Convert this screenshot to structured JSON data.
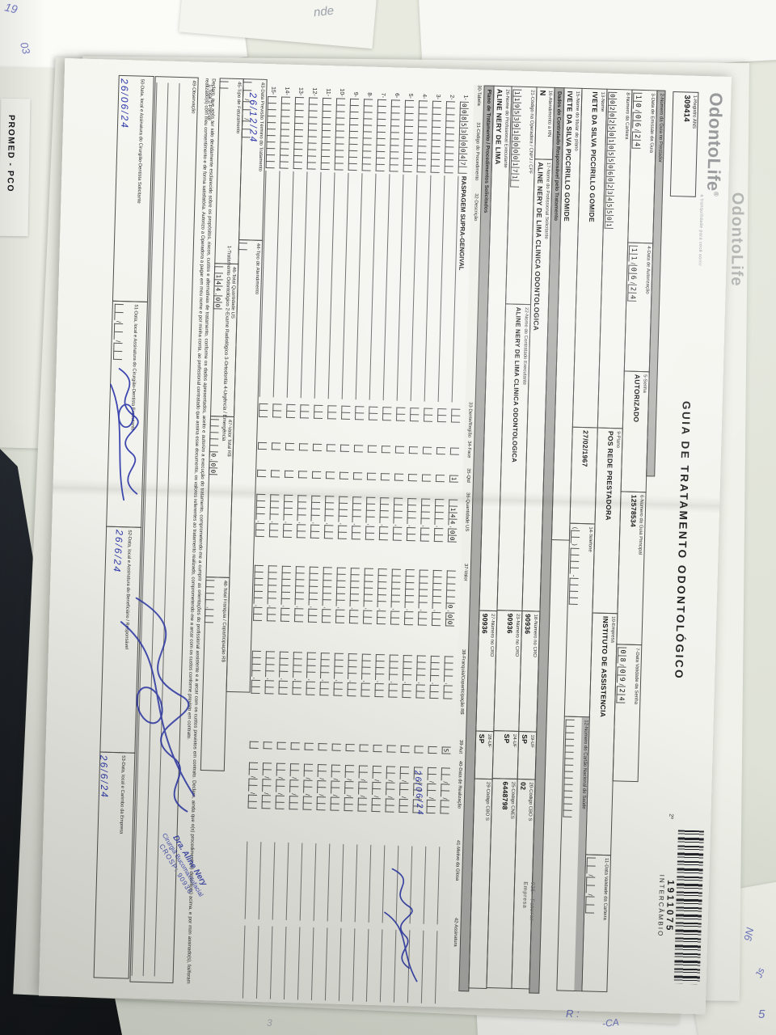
{
  "background": {
    "promed": "PROMED - PCO",
    "scribbles": {
      "s1": "nde",
      "s2": "19",
      "s3": "03",
      "s4": "R :",
      "s5": "-CA",
      "s6": "9N",
      "s7": "Js",
      "s8": "5",
      "s9": "3"
    }
  },
  "form": {
    "logo": {
      "name": "OdontoLife",
      "registered": "®",
      "tagline": "a tranquilidade para você sorrir"
    },
    "title": "GUIA DE TRATAMENTO ODONTOLÓGICO",
    "via_label": "2ª",
    "barcode_number": "1911075",
    "barcode_label": "INTERCÂMBIO",
    "sections": {
      "contratado": "Dados do Contratado Responsável pelo Tratamento",
      "plano": "Plano de Tratamento / Procedimentos Solicitados"
    },
    "faturar_stamp": "025 - Faturar Empresa",
    "fields": {
      "f1": {
        "label": "1-Registro ANS",
        "value": "309414"
      },
      "f2": {
        "label": "2-Número da Guia no Prestador",
        "value": ""
      },
      "f3": {
        "label": "3-Data de Emissão da Guia",
        "value": "10/06/24"
      },
      "f4": {
        "label": "4-Data de Autorização",
        "value": "11/06/24"
      },
      "f5": {
        "label": "5-Senha",
        "value": "AUTORIZADO"
      },
      "f6": {
        "label": "6-Número da Guia Principal",
        "value": "12578534"
      },
      "f7": {
        "label": "7-Data Validade da Senha",
        "value": "08/09/24"
      },
      "f8": {
        "label": "8-Número da Carteira",
        "value": "002025010550602345501"
      },
      "f9": {
        "label": "9-Plano",
        "value": "POS REDE PRESTADORA"
      },
      "f10": {
        "label": "10-Empresa",
        "value": "INSTITUTO DE ASSISTENCIA"
      },
      "f11": {
        "label": "11-Data Validade da Carteira",
        "value": ""
      },
      "f12": {
        "label": "12-Número do Cartão Nacional de Saúde",
        "value": ""
      },
      "f13": {
        "label": "13-Nome",
        "value": "IVETE DA SILVA PICCIRILLO GOMIDE"
      },
      "f13b": {
        "label": "",
        "value": "27/02/1967"
      },
      "f14": {
        "label": "14-Telefone",
        "value": ""
      },
      "f15": {
        "label": "15-Nome do titular do plano",
        "value": "IVETE DA SILVA PICCIRILLO GOMIDE"
      },
      "f16": {
        "label": "16-Atendimento a RN",
        "value": "N"
      },
      "f17": {
        "label": "17-Nome do Profissional Solicitante",
        "value": "ALINE NERY DE LIMA CLINICA ODONTOLOGICA"
      },
      "f18": {
        "label": "18-Número no CRO",
        "value": "90936"
      },
      "f19": {
        "label": "19-UF",
        "value": "SP"
      },
      "f20": {
        "label": "20-Código CBO S",
        "value": "02"
      },
      "f21": {
        "label": "21-Código na Operadora / CNPJ / CPF",
        "value": "11953918000171"
      },
      "f22": {
        "label": "22-Nome do Contratado Executante",
        "value": "ALINE NERY DE LIMA CLINICA ODONTOLOGICA"
      },
      "f23": {
        "label": "23-Número no CRO",
        "value": "90936"
      },
      "f24": {
        "label": "24-UF",
        "value": "SP"
      },
      "f25": {
        "label": "25-Código CNES",
        "value": "6448798"
      },
      "f26": {
        "label": "26-Nome do Profissional Executante",
        "value": "ALINE NERY DE LIMA"
      },
      "f27": {
        "label": "27-Número no CRO",
        "value": "90936"
      },
      "f28": {
        "label": "28-UF",
        "value": "SP"
      },
      "f29": {
        "label": "29-Código CBO S",
        "value": ""
      },
      "f43": {
        "label": "43-Data Previsão Término do Tratamento",
        "value": ""
      },
      "f44": {
        "label": "44-Tipo de Atendimento",
        "options": "1-Tratamento Odontológico   2-Exame Radiológico   3-Ortodontia   4-Urgência / Emergência",
        "value": ""
      },
      "f45": {
        "label": "45-Tipo de Faturamento",
        "options": "1-Total   2-Parcial",
        "value": ""
      },
      "f46": {
        "label": "46-Total Quantidade US",
        "value": "144,00"
      },
      "f47": {
        "label": "47-Valor Total R$",
        "value": "0,00"
      },
      "f48": {
        "label": "48-Total Franquia / Coparticipação R$",
        "value": ""
      },
      "f49": {
        "label": "49-Observação",
        "value": ""
      },
      "f50": {
        "label": "50-Data, local e Assinatura do Cirurgião-Dentista Solicitante",
        "value": ""
      },
      "f51": {
        "label": "51-Data, local e Assinatura do Cirurgião-Dentista Executante",
        "value": ""
      },
      "f52": {
        "label": "52-Data, local e Assinatura do Beneficiário / Responsável",
        "value": ""
      },
      "f53": {
        "label": "53-Data, local e Carimbo da Empresa",
        "value": ""
      }
    },
    "table": {
      "headers": [
        "30-Tabela",
        "31-Código do Procedimento",
        "32-Descrição",
        "33-Dente/Região",
        "34-Face",
        "35-Qtd",
        "36-Quantidade US",
        "37-Valor",
        "38-Franquia/Coparticipação R$",
        "39-Aut",
        "40-Data de Realização",
        "41-Motivo da Glosa",
        "42-Assinatura"
      ],
      "row_count": 15,
      "rows": [
        {
          "num": "1-",
          "code": "0085300047",
          "desc": "RASPAGEM SUPRA-GENGIVAL",
          "dente": "",
          "face": "",
          "qtd": "1",
          "qtd_us": "144,00",
          "valor": "0,00",
          "franquia": "",
          "aut": "S",
          "data": ""
        }
      ]
    },
    "handwriting": {
      "row1_date": "26/06/24",
      "f43": "26/12/24",
      "f50": "26/06/24",
      "f52": "26/6/24",
      "f53": "26/6/24"
    },
    "stamp": {
      "line1": "Dra. Aline Nery",
      "line2": "Cirurgiã Bucomaxilofacial",
      "line3": "CROSP: 90936"
    },
    "declaration": "Declaro, que após ter sido devidamente esclarecido sobre os propósitos, riscos, custos e alternativas de tratamento, conforme os dados apresentados, aceito e autorizo a execução do tratamento, comprometendo-me a cumprir as orientações do profissional assistente e a arcar com os custos previstos em contrato. Declaro, ainda que o(s) procedimento(s) descrito(s) acima, e por mim assinado(s), foi/foram realizado(s) com meu consentimento e de forma satisfatória. Autorizo a Operadora a pagar em meu nome e por minha conta, ao profissional contratado que assina esse documento, os valores referentes ao tratamento realizado, comprometendo-me a arcar com os custos conforme previsto em contrato."
  }
}
